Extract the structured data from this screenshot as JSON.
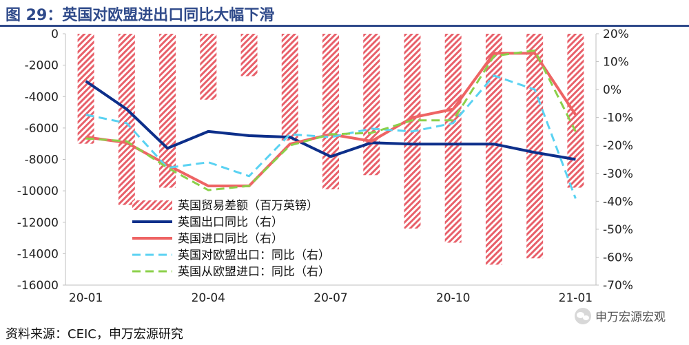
{
  "title": "图 29：英国对欧盟进出口同比大幅下滑",
  "source": "资料来源：CEIC，申万宏源研究",
  "watermark": "申万宏源宏观",
  "chart_data": {
    "type": "bar+line",
    "title": "图 29：英国对欧盟进出口同比大幅下滑",
    "categories": [
      "20-01",
      "20-02",
      "20-03",
      "20-04",
      "20-05",
      "20-06",
      "20-07",
      "20-08",
      "20-09",
      "20-10",
      "20-11",
      "20-12",
      "21-01"
    ],
    "x_tick_labels": [
      "20-01",
      "20-04",
      "20-07",
      "20-10",
      "21-01"
    ],
    "left_axis": {
      "ylim": [
        -16000,
        0
      ],
      "ticks": [
        0,
        -2000,
        -4000,
        -6000,
        -8000,
        -10000,
        -12000,
        -14000,
        -16000
      ]
    },
    "right_axis": {
      "ylim": [
        -70,
        20
      ],
      "ticks": [
        "20%",
        "10%",
        "0%",
        "-10%",
        "-20%",
        "-30%",
        "-40%",
        "-50%",
        "-60%",
        "-70%"
      ]
    },
    "legend_position": "bottom-left",
    "bars": {
      "name": "英国贸易差额（百万英镑）",
      "axis": "left",
      "color": "#e8606a",
      "values": [
        -7000,
        -10900,
        -9800,
        -4200,
        -2700,
        -6800,
        -9900,
        -9000,
        -12400,
        -13300,
        -14700,
        -14300,
        -9800
      ]
    },
    "series": [
      {
        "name": "英国出口同比（右）",
        "axis": "right",
        "color": "#0d2f8a",
        "style": "solid",
        "width": 4,
        "values": [
          3,
          -7,
          -21,
          -15,
          -16.5,
          -17,
          -24,
          -19,
          -19.5,
          -19.5,
          -19.5,
          -22.5,
          -25
        ]
      },
      {
        "name": "英国进口同比（右）",
        "axis": "right",
        "color": "#ee6464",
        "style": "solid",
        "width": 4,
        "values": [
          -17,
          -19,
          -27,
          -34.5,
          -34.5,
          -19.5,
          -16,
          -18.5,
          -10,
          -7,
          13,
          13,
          -9
        ]
      },
      {
        "name": "英国对欧盟出口：同比（右）",
        "axis": "right",
        "color": "#5ad2f2",
        "style": "dash",
        "width": 3,
        "values": [
          -9,
          -12,
          -28,
          -26,
          -31,
          -16,
          -17,
          -14,
          -15,
          -12,
          5,
          0,
          -39
        ]
      },
      {
        "name": "英国从欧盟进口：同比（右）",
        "axis": "right",
        "color": "#8bd04a",
        "style": "dash",
        "width": 3,
        "values": [
          -17.5,
          -18.5,
          -28,
          -36,
          -34.5,
          -20,
          -16,
          -15.5,
          -11,
          -11,
          12,
          14,
          -15
        ]
      }
    ]
  }
}
